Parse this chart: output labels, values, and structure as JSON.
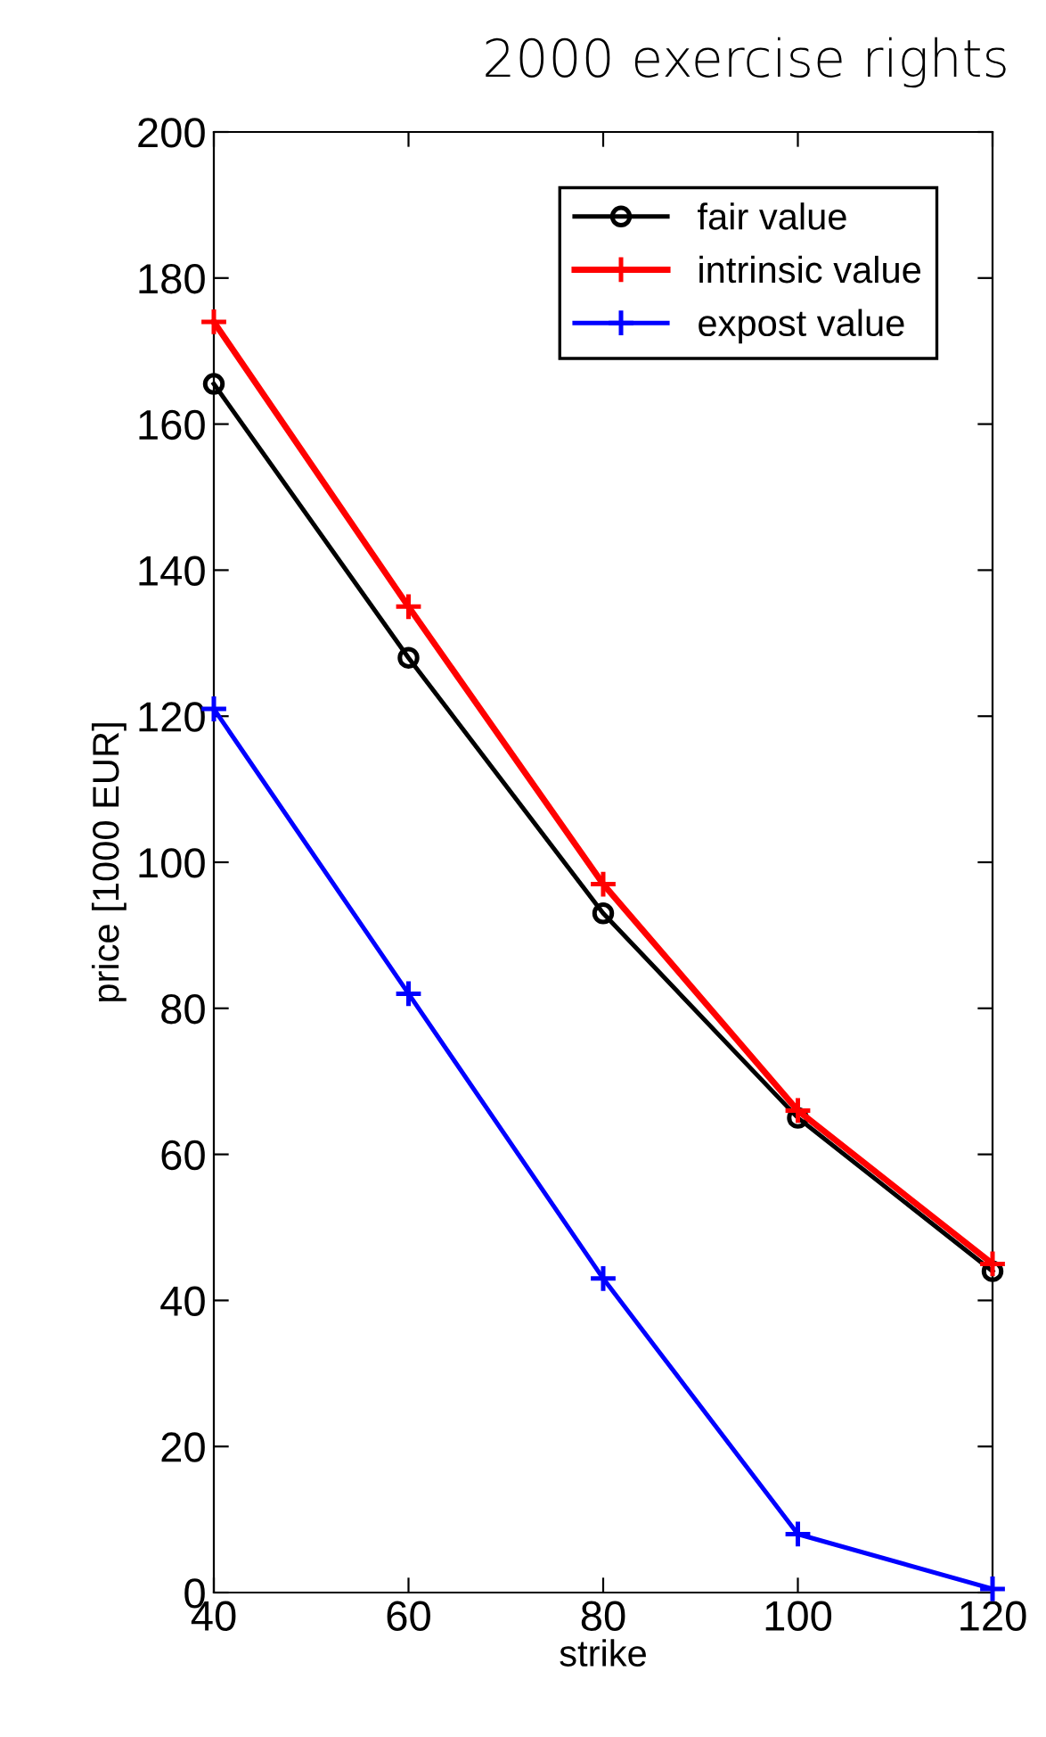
{
  "chart_data": {
    "type": "line",
    "title": "2000 exercise rights",
    "xlabel": "strike",
    "ylabel": "price [1000 EUR]",
    "x": [
      40,
      60,
      80,
      100,
      120
    ],
    "series": [
      {
        "name": "fair value",
        "color": "#000000",
        "marker": "circle",
        "values": [
          165.5,
          128,
          93,
          65,
          44
        ]
      },
      {
        "name": "intrinsic value",
        "color": "#ff0000",
        "marker": "cross",
        "values": [
          174,
          135,
          97,
          66,
          45
        ]
      },
      {
        "name": "expost value",
        "color": "#0000ff",
        "marker": "cross",
        "values": [
          121,
          82,
          43,
          8,
          0.5
        ]
      }
    ],
    "xlim": [
      40,
      120
    ],
    "xticks": [
      40,
      60,
      80,
      100,
      120
    ],
    "ylim": [
      0,
      200
    ],
    "yticks": [
      0,
      20,
      40,
      60,
      80,
      100,
      120,
      140,
      160,
      180,
      200
    ],
    "grid": false,
    "legend": "top right",
    "line_style": "solid"
  }
}
